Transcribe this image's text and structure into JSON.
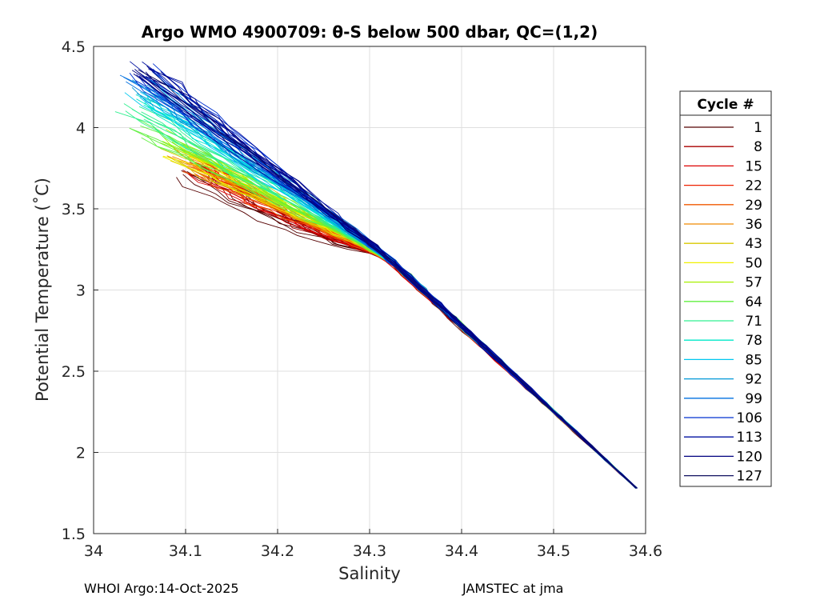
{
  "chart_data": {
    "type": "line",
    "title": "Argo WMO 4900709: θ-S below 500 dbar,  QC=(1,2)",
    "xlabel": "Salinity",
    "ylabel": "Potential Temperature (˚C)",
    "xlim": [
      34.0,
      34.6
    ],
    "ylim": [
      1.5,
      4.5
    ],
    "xticks": [
      "34",
      "34.1",
      "34.2",
      "34.3",
      "34.4",
      "34.5",
      "34.6"
    ],
    "yticks": [
      "1.5",
      "2",
      "2.5",
      "3",
      "3.5",
      "4",
      "4.5"
    ],
    "grid": true,
    "legend": {
      "title": "Cycle #",
      "placement": "outside-right",
      "entries": [
        {
          "label": "1",
          "color": "#550000"
        },
        {
          "label": "8",
          "color": "#aa0000"
        },
        {
          "label": "15",
          "color": "#dd0000"
        },
        {
          "label": "22",
          "color": "#ee2000"
        },
        {
          "label": "29",
          "color": "#f05a00"
        },
        {
          "label": "36",
          "color": "#f08a00"
        },
        {
          "label": "43",
          "color": "#d8c800"
        },
        {
          "label": "50",
          "color": "#f0f000"
        },
        {
          "label": "57",
          "color": "#a8f000"
        },
        {
          "label": "64",
          "color": "#60f040"
        },
        {
          "label": "71",
          "color": "#30f090"
        },
        {
          "label": "78",
          "color": "#00e8c8"
        },
        {
          "label": "85",
          "color": "#00c8f0"
        },
        {
          "label": "92",
          "color": "#0098d8"
        },
        {
          "label": "99",
          "color": "#0070e0"
        },
        {
          "label": "106",
          "color": "#0030d0"
        },
        {
          "label": "113",
          "color": "#0010a0"
        },
        {
          "label": "120",
          "color": "#000080"
        },
        {
          "label": "127",
          "color": "#101060"
        }
      ]
    },
    "profile_shape": {
      "deep_end": {
        "s": 34.59,
        "theta": 1.78
      },
      "converged_at": {
        "s": 34.32,
        "theta": 3.2
      },
      "top_ends_by_cycle": [
        {
          "cycle": 1,
          "s": 34.105,
          "theta": 3.72
        },
        {
          "cycle": 15,
          "s": 34.12,
          "theta": 3.75
        },
        {
          "cycle": 36,
          "s": 34.1,
          "theta": 3.8
        },
        {
          "cycle": 57,
          "s": 34.09,
          "theta": 3.87
        },
        {
          "cycle": 71,
          "s": 34.04,
          "theta": 4.05
        },
        {
          "cycle": 85,
          "s": 34.05,
          "theta": 4.2
        },
        {
          "cycle": 106,
          "s": 34.05,
          "theta": 4.35
        },
        {
          "cycle": 127,
          "s": 34.06,
          "theta": 4.38
        }
      ]
    }
  },
  "footer": {
    "left": "WHOI Argo:14-Oct-2025",
    "right": "JAMSTEC at jma"
  }
}
